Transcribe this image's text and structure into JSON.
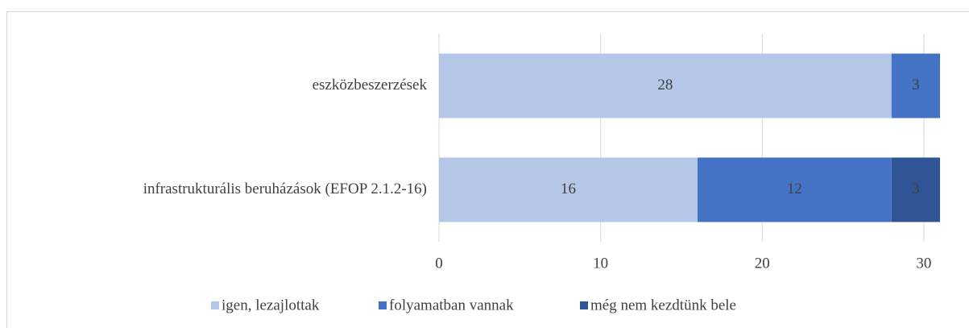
{
  "chart_data": {
    "type": "stacked-barh",
    "categories": [
      "eszközbeszerzések",
      "infrastrukturális beruházások (EFOP 2.1.2-16)"
    ],
    "series": [
      {
        "name": "igen, lezajlottak",
        "color": "#b4c7e7",
        "values": [
          28,
          16
        ]
      },
      {
        "name": "folyamatban vannak",
        "color": "#4472c4",
        "values": [
          3,
          12
        ]
      },
      {
        "name": "még nem kezdtünk bele",
        "color": "#2f5597",
        "values": [
          null,
          3
        ]
      }
    ],
    "xlim": [
      0,
      31.1
    ],
    "xticks": [
      0,
      10,
      20,
      30
    ],
    "grid": true,
    "legend": "bottom"
  }
}
